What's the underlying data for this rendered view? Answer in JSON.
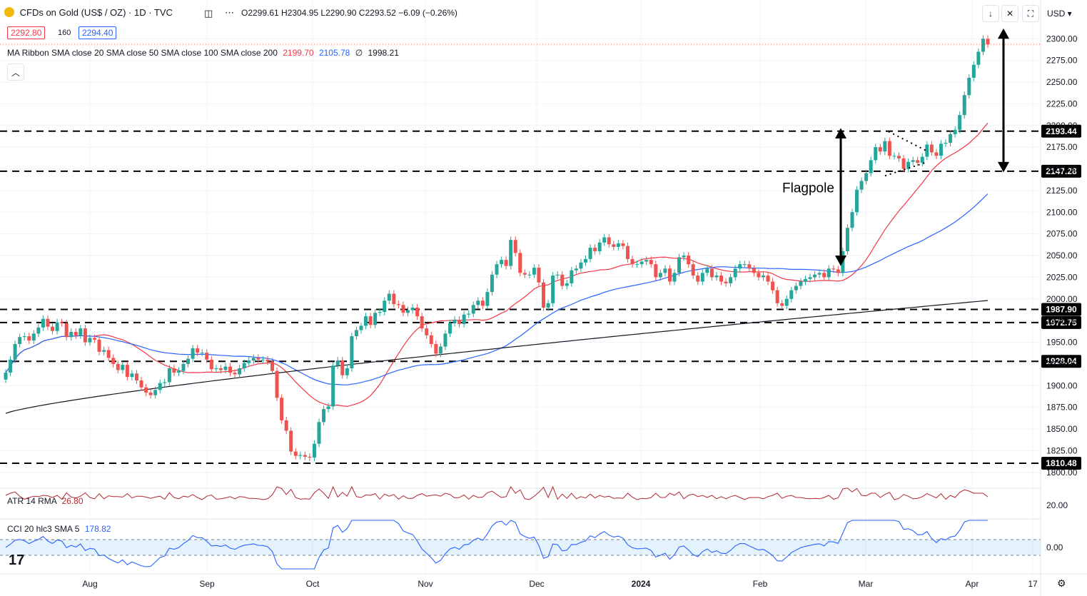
{
  "header": {
    "symbol": "CFDs on Gold (US$ / OZ) · 1D · TVC",
    "ohlc": "O2299.61 H2304.95 L2290.90 C2293.52 −6.09 (−0.26%)",
    "bid": "2292.80",
    "spread": "160",
    "ask": "2294.40",
    "ribbon_label": "MA Ribbon SMA close 20 SMA close 50 SMA close 100 SMA close 200",
    "ribbon_v1": "2199.70",
    "ribbon_v2": "2105.78",
    "ribbon_v3": "∅",
    "ribbon_v4": "1998.21",
    "currency": "USD"
  },
  "atr": {
    "label": "ATR 14 RMA",
    "value": "26.80",
    "tick": "20.00"
  },
  "cci": {
    "label": "CCI 20 hlc3 SMA 5",
    "value": "178.82",
    "tick": "0.00"
  },
  "annotation": {
    "flagpole": "Flagpole"
  },
  "colors": {
    "up": "#26a69a",
    "down": "#ef5350",
    "sma20": "#f23645",
    "sma50": "#2962ff",
    "sma200": "#131722",
    "atr": "#b22833",
    "cci": "#2962ff"
  },
  "chart_data": {
    "type": "candlestick",
    "y_ticks": [
      1800,
      1825,
      1850,
      1875,
      1900,
      1925,
      1950,
      1975,
      2000,
      2025,
      2050,
      2075,
      2100,
      2125,
      2150,
      2175,
      2200,
      2225,
      2250,
      2275,
      2300
    ],
    "x_ticks": [
      "Aug",
      "Sep",
      "Oct",
      "Nov",
      "Dec",
      "2024",
      "Feb",
      "Mar",
      "Apr",
      "17"
    ],
    "levels": [
      {
        "label": "2193.44",
        "value": 2193.44
      },
      {
        "label": "2147.28",
        "value": 2147.28
      },
      {
        "label": "1987.90",
        "value": 1987.9
      },
      {
        "label": "1972.75",
        "value": 1972.75
      },
      {
        "label": "1928.04",
        "value": 1928.04
      },
      {
        "label": "1810.48",
        "value": 1810.48
      }
    ],
    "last_price": 2293.52,
    "closes": [
      1915,
      1930,
      1948,
      1956,
      1957,
      1952,
      1960,
      1967,
      1977,
      1968,
      1963,
      1973,
      1972,
      1956,
      1962,
      1958,
      1966,
      1950,
      1955,
      1953,
      1939,
      1941,
      1932,
      1925,
      1918,
      1924,
      1910,
      1914,
      1906,
      1898,
      1892,
      1889,
      1895,
      1903,
      1904,
      1920,
      1915,
      1917,
      1925,
      1931,
      1943,
      1938,
      1938,
      1930,
      1919,
      1920,
      1918,
      1922,
      1915,
      1913,
      1920,
      1926,
      1929,
      1932,
      1930,
      1930,
      1928,
      1917,
      1886,
      1860,
      1848,
      1824,
      1819,
      1820,
      1818,
      1817,
      1833,
      1858,
      1873,
      1876,
      1923,
      1929,
      1912,
      1920,
      1957,
      1964,
      1969,
      1980,
      1970,
      1984,
      1985,
      1998,
      2006,
      1994,
      1993,
      1984,
      1987,
      1990,
      1980,
      1966,
      1958,
      1948,
      1937,
      1945,
      1960,
      1972,
      1976,
      1971,
      1982,
      1983,
      1993,
      1998,
      1992,
      2008,
      2028,
      2040,
      2045,
      2038,
      2068,
      2053,
      2030,
      2028,
      2028,
      2036,
      2019,
      1990,
      1995,
      2027,
      2028,
      2015,
      2018,
      2033,
      2035,
      2042,
      2046,
      2059,
      2055,
      2065,
      2071,
      2063,
      2060,
      2064,
      2061,
      2046,
      2040,
      2040,
      2043,
      2045,
      2040,
      2025,
      2030,
      2035,
      2020,
      2030,
      2048,
      2050,
      2040,
      2027,
      2020,
      2030,
      2035,
      2025,
      2027,
      2020,
      2018,
      2025,
      2035,
      2040,
      2040,
      2035,
      2030,
      2025,
      2027,
      2020,
      2010,
      1995,
      1992,
      2000,
      2010,
      2015,
      2020,
      2023,
      2025,
      2028,
      2030,
      2025,
      2035,
      2034,
      2030,
      2055,
      2082,
      2100,
      2126,
      2136,
      2145,
      2160,
      2175,
      2170,
      2182,
      2165,
      2165,
      2162,
      2150,
      2158,
      2160,
      2157,
      2164,
      2178,
      2169,
      2165,
      2179,
      2180,
      2190,
      2195,
      2212,
      2235,
      2255,
      2270,
      2285,
      2300,
      2293.52
    ],
    "sma20_end": 2199.7,
    "sma50_end": 2105.78,
    "sma200_end": 1998.21
  }
}
